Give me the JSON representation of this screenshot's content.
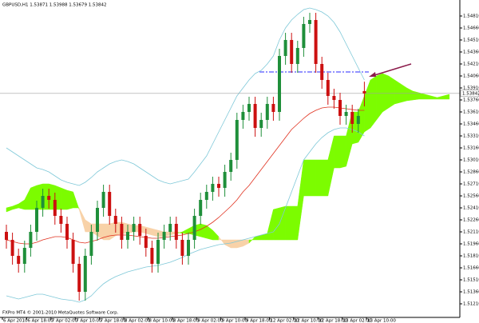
{
  "chart_data": {
    "type": "candlestick",
    "title": "GBPUSD,H1 1.53871 1.53988 1.53679 1.53842",
    "copyright": "FXPro MT4 © 2001-2010 MetaQuotes Software Corp.",
    "x_labels": [
      "6 Apr 2010",
      "6 Apr 18:00",
      "7 Apr 02:00",
      "7 Apr 10:00",
      "7 Apr 18:00",
      "8 Apr 02:00",
      "8 Apr 10:00",
      "8 Apr 18:00",
      "9 Apr 02:00",
      "9 Apr 10:00",
      "9 Apr 18:00",
      "12 Apr 02:00",
      "12 Apr 10:00",
      "12 Apr 18:00",
      "13 Apr 02:00",
      "13 Apr 10:00"
    ],
    "ylim": [
      1.5106,
      1.5497
    ],
    "yticks": [
      {
        "value": 1.5121,
        "label": "1.51210"
      },
      {
        "value": 1.5136,
        "label": "1.51360"
      },
      {
        "value": 1.5151,
        "label": "1.51510"
      },
      {
        "value": 1.5166,
        "label": "1.51660"
      },
      {
        "value": 1.5181,
        "label": "1.51810"
      },
      {
        "value": 1.5196,
        "label": "1.51960"
      },
      {
        "value": 1.5211,
        "label": "1.52110"
      },
      {
        "value": 1.5226,
        "label": "1.52260"
      },
      {
        "value": 1.5241,
        "label": "1.52410"
      },
      {
        "value": 1.5256,
        "label": "1.52560"
      },
      {
        "value": 1.5271,
        "label": "1.52710"
      },
      {
        "value": 1.5286,
        "label": "1.52860"
      },
      {
        "value": 1.5301,
        "label": "1.53010"
      },
      {
        "value": 1.5316,
        "label": "1.53160"
      },
      {
        "value": 1.5331,
        "label": "1.53310"
      },
      {
        "value": 1.5346,
        "label": "1.53460"
      },
      {
        "value": 1.5361,
        "label": "1.53610"
      },
      {
        "value": 1.5376,
        "label": "1.53760"
      },
      {
        "value": 1.5391,
        "label": "1.53910"
      },
      {
        "value": 1.5406,
        "label": "1.54060"
      },
      {
        "value": 1.5421,
        "label": "1.54210"
      },
      {
        "value": 1.5436,
        "label": "1.54360"
      },
      {
        "value": 1.5451,
        "label": "1.54510"
      },
      {
        "value": 1.5466,
        "label": "1.54660"
      },
      {
        "value": 1.5481,
        "label": "1.54810"
      }
    ],
    "bull_color": "#1f8f3a",
    "bear_color": "#cc1010",
    "open": [
      1.5211,
      1.5201,
      1.5181,
      1.5171,
      1.5191,
      1.5211,
      1.5241,
      1.5256,
      1.5251,
      1.5231,
      1.5221,
      1.5201,
      1.5171,
      1.5136,
      1.5181,
      1.5211,
      1.5241,
      1.5261,
      1.5231,
      1.5221,
      1.5201,
      1.5211,
      1.5221,
      1.5206,
      1.5191,
      1.5171,
      1.5201,
      1.5211,
      1.5221,
      1.5201,
      1.5181,
      1.5201,
      1.5231,
      1.5251,
      1.5261,
      1.5271,
      1.5266,
      1.5286,
      1.5301,
      1.5351,
      1.5361,
      1.5371,
      1.5341,
      1.5351,
      1.5371,
      1.5361,
      1.5431,
      1.5451,
      1.5421,
      1.5441,
      1.5471,
      1.5476,
      1.5421,
      1.5401,
      1.5381,
      1.5376,
      1.5356,
      1.5361,
      1.5346,
      1.53871
    ],
    "high": [
      1.522,
      1.521,
      1.519,
      1.52,
      1.522,
      1.525,
      1.5265,
      1.5265,
      1.526,
      1.524,
      1.523,
      1.521,
      1.518,
      1.519,
      1.522,
      1.525,
      1.527,
      1.527,
      1.524,
      1.523,
      1.522,
      1.523,
      1.523,
      1.5215,
      1.52,
      1.521,
      1.522,
      1.523,
      1.523,
      1.521,
      1.521,
      1.524,
      1.526,
      1.527,
      1.528,
      1.528,
      1.5295,
      1.531,
      1.536,
      1.537,
      1.538,
      1.538,
      1.536,
      1.538,
      1.538,
      1.544,
      1.546,
      1.546,
      1.545,
      1.548,
      1.5485,
      1.5485,
      1.543,
      1.541,
      1.539,
      1.5385,
      1.537,
      1.537,
      1.5365,
      1.53988
    ],
    "low": [
      1.519,
      1.517,
      1.516,
      1.516,
      1.518,
      1.52,
      1.523,
      1.524,
      1.522,
      1.521,
      1.519,
      1.516,
      1.5125,
      1.5125,
      1.517,
      1.52,
      1.523,
      1.522,
      1.521,
      1.519,
      1.519,
      1.52,
      1.5195,
      1.518,
      1.516,
      1.516,
      1.519,
      1.52,
      1.519,
      1.517,
      1.517,
      1.519,
      1.522,
      1.524,
      1.525,
      1.5255,
      1.5255,
      1.5275,
      1.529,
      1.534,
      1.535,
      1.533,
      1.533,
      1.534,
      1.535,
      1.535,
      1.542,
      1.541,
      1.541,
      1.543,
      1.546,
      1.541,
      1.539,
      1.537,
      1.5365,
      1.5345,
      1.5345,
      1.5335,
      1.5335,
      1.53679
    ],
    "close": [
      1.5201,
      1.5181,
      1.5171,
      1.5191,
      1.5211,
      1.5241,
      1.5256,
      1.5251,
      1.5231,
      1.5221,
      1.5201,
      1.5171,
      1.5136,
      1.5181,
      1.5211,
      1.5241,
      1.5261,
      1.5231,
      1.5221,
      1.5201,
      1.5211,
      1.5221,
      1.5206,
      1.5191,
      1.5171,
      1.5201,
      1.5211,
      1.5221,
      1.5201,
      1.5181,
      1.5201,
      1.5231,
      1.5251,
      1.5261,
      1.5271,
      1.5266,
      1.5286,
      1.5301,
      1.5351,
      1.5361,
      1.5371,
      1.5341,
      1.5351,
      1.5371,
      1.5361,
      1.5431,
      1.5451,
      1.5421,
      1.5441,
      1.5471,
      1.5476,
      1.5421,
      1.5401,
      1.5381,
      1.5376,
      1.5356,
      1.5361,
      1.5346,
      1.5356,
      1.53842
    ],
    "cloud": {
      "up_color": "#7cfc00",
      "down_color": "#f8d2a8",
      "span_a": [
        1.5241,
        1.5243,
        1.5246,
        1.5251,
        1.5266,
        1.5269,
        1.5271,
        1.5271,
        1.5269,
        1.5266,
        1.5263,
        1.5261,
        1.5239,
        1.5211,
        1.5211,
        1.5206,
        1.5201,
        1.5201,
        1.5206,
        1.5209,
        1.5209,
        1.5211,
        1.5211,
        1.5209,
        1.5207,
        1.5205,
        1.5205,
        1.5207,
        1.5209,
        1.5211,
        1.5215,
        1.5219,
        1.5221,
        1.5219,
        1.5213,
        1.5205,
        1.5195,
        1.5191,
        1.5191,
        1.5193,
        1.5197,
        1.5205,
        1.5207,
        1.5209,
        1.5239,
        1.5241,
        1.5243,
        1.5243,
        1.5243,
        1.5301,
        1.5301,
        1.5301,
        1.5301,
        1.5301,
        1.5331,
        1.5331,
        1.5331,
        1.5361,
        1.5361,
        1.5381,
        1.5401,
        1.5406,
        1.5409,
        1.5406,
        1.5401,
        1.5396,
        1.5391,
        1.5387,
        1.5385,
        1.5383,
        1.5381,
        1.5379,
        1.5381,
        1.5383
      ],
      "span_b": [
        1.5236,
        1.5239,
        1.5241,
        1.5239,
        1.5239,
        1.5239,
        1.5239,
        1.5239,
        1.5239,
        1.5239,
        1.5239,
        1.5241,
        1.5241,
        1.5226,
        1.5221,
        1.5221,
        1.5221,
        1.5221,
        1.5223,
        1.5223,
        1.5221,
        1.5219,
        1.5219,
        1.5217,
        1.5215,
        1.5213,
        1.5211,
        1.5211,
        1.5211,
        1.5209,
        1.5209,
        1.5207,
        1.5205,
        1.5203,
        1.5201,
        1.5201,
        1.5201,
        1.5201,
        1.5201,
        1.5201,
        1.5201,
        1.5201,
        1.5201,
        1.5201,
        1.5201,
        1.5201,
        1.5201,
        1.5201,
        1.5201,
        1.5256,
        1.5256,
        1.5256,
        1.5256,
        1.5256,
        1.5291,
        1.5291,
        1.5293,
        1.5321,
        1.5323,
        1.5336,
        1.5341,
        1.5351,
        1.5361,
        1.5366,
        1.5371,
        1.5373,
        1.5375,
        1.5376,
        1.5377,
        1.5377,
        1.5377,
        1.5377,
        1.5377,
        1.5377
      ]
    },
    "lines": [
      {
        "color": "#7ec8d8",
        "values": [
          1.5316,
          1.5311,
          1.5306,
          1.5301,
          1.5296,
          1.5291,
          1.5289,
          1.5286,
          1.5281,
          1.5276,
          1.5273,
          1.5271,
          1.5269,
          1.5273,
          1.5279,
          1.5286,
          1.5291,
          1.5296,
          1.5299,
          1.5301,
          1.5299,
          1.5296,
          1.5291,
          1.5286,
          1.5281,
          1.5276,
          1.5273,
          1.5271,
          1.5273,
          1.5275,
          1.5277,
          1.5286,
          1.5296,
          1.5306,
          1.5321,
          1.5336,
          1.5351,
          1.5366,
          1.5381,
          1.5391,
          1.5401,
          1.5409,
          1.5413,
          1.5421,
          1.5431,
          1.5451,
          1.5466,
          1.5476,
          1.5483,
          1.5489,
          1.5491,
          1.5489,
          1.5486,
          1.5481,
          1.5473,
          1.5461,
          1.5446,
          1.5431,
          1.5416,
          1.5401
        ]
      },
      {
        "color": "#7ec8d8",
        "values": [
          1.5131,
          1.5129,
          1.5127,
          1.5129,
          1.5131,
          1.5133,
          1.5133,
          1.5131,
          1.5129,
          1.5127,
          1.5126,
          1.5125,
          1.5123,
          1.5126,
          1.5131,
          1.5139,
          1.5146,
          1.5151,
          1.5155,
          1.5158,
          1.5161,
          1.5163,
          1.5165,
          1.5167,
          1.5168,
          1.5169,
          1.5171,
          1.5173,
          1.5176,
          1.5179,
          1.5183,
          1.5186,
          1.5189,
          1.5191,
          1.5193,
          1.5195,
          1.5196,
          1.5197,
          1.5199,
          1.5201,
          1.5203,
          1.5205,
          1.5207,
          1.5209,
          1.5211,
          1.5221,
          1.5241,
          1.5261,
          1.5281,
          1.5301,
          1.5311,
          1.5321,
          1.5329,
          1.5335,
          1.5339,
          1.5341,
          1.5341,
          1.5339,
          1.5336,
          1.5331
        ]
      },
      {
        "color": "#e0301e",
        "values": [
          1.5201,
          1.5199,
          1.5197,
          1.5196,
          1.5196,
          1.5198,
          1.5201,
          1.5203,
          1.5205,
          1.5205,
          1.5204,
          1.5201,
          1.5198,
          1.5197,
          1.5199,
          1.5201,
          1.5204,
          1.5206,
          1.5207,
          1.5207,
          1.5207,
          1.5206,
          1.5205,
          1.5204,
          1.5203,
          1.5203,
          1.5204,
          1.5205,
          1.5206,
          1.5207,
          1.5209,
          1.5211,
          1.5214,
          1.5218,
          1.5223,
          1.5229,
          1.5236,
          1.5243,
          1.5251,
          1.5261,
          1.5269,
          1.5279,
          1.5289,
          1.5299,
          1.5309,
          1.5319,
          1.5329,
          1.5339,
          1.5346,
          1.5353,
          1.5359,
          1.5363,
          1.5366,
          1.5367,
          1.5367,
          1.5366,
          1.5365,
          1.5364,
          1.5363,
          1.5363
        ]
      }
    ],
    "level": 1.5411,
    "level_color": "#7070ff",
    "last_price": 1.53842
  }
}
